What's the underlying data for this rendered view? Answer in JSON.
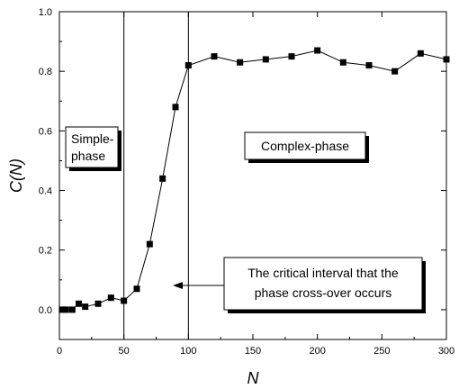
{
  "chart_data": {
    "type": "line",
    "title": "",
    "xlabel": "N",
    "ylabel": "C(N)",
    "xlim": [
      0,
      300
    ],
    "ylim": [
      -0.1,
      1.0
    ],
    "grid": false,
    "legend": "none",
    "x_ticks": [
      0,
      50,
      100,
      150,
      200,
      250,
      300
    ],
    "x_tick_labels": [
      "0",
      "50",
      "100",
      "150",
      "200",
      "250",
      "300"
    ],
    "y_ticks": [
      0.0,
      0.2,
      0.4,
      0.6,
      0.8,
      1.0
    ],
    "y_tick_labels": [
      "0.0",
      "0.2",
      "0.4",
      "0.6",
      "0.8",
      "1.0"
    ],
    "series": [
      {
        "x": [
          2,
          5,
          10,
          15,
          20,
          30,
          40,
          50,
          60,
          70,
          80,
          90,
          100,
          120,
          140,
          160,
          180,
          200,
          220,
          240,
          260,
          280,
          300
        ],
        "y": [
          0.0,
          0.0,
          0.0,
          0.02,
          0.01,
          0.02,
          0.04,
          0.03,
          0.07,
          0.22,
          0.44,
          0.68,
          0.82,
          0.85,
          0.83,
          0.84,
          0.85,
          0.87,
          0.83,
          0.82,
          0.8,
          0.86,
          0.84
        ],
        "color": "#000000",
        "marker": "square"
      }
    ],
    "vlines": [
      50,
      100
    ],
    "annotations": {
      "simple_phase": [
        "Simple-",
        "phase"
      ],
      "complex_phase": "Complex-phase",
      "critical": [
        "The critical interval that the",
        "phase cross-over occurs"
      ]
    }
  }
}
